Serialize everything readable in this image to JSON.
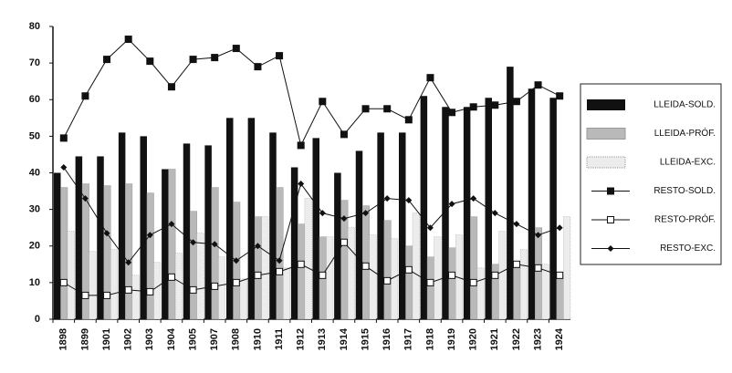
{
  "chart_data": {
    "type": "bar",
    "categories": [
      "1898",
      "1899",
      "1901",
      "1902",
      "1903",
      "1904",
      "1905",
      "1907",
      "1908",
      "1910",
      "1911",
      "1912",
      "1913",
      "1914",
      "1915",
      "1916",
      "1917",
      "1918",
      "1919",
      "1920",
      "1921",
      "1922",
      "1923",
      "1924"
    ],
    "ylim": [
      0,
      80
    ],
    "yticks": [
      0,
      10,
      20,
      30,
      40,
      50,
      60,
      70,
      80
    ],
    "series": [
      {
        "name": "LLEIDA-SOLD.",
        "kind": "bar",
        "color": "#111111",
        "values": [
          40,
          44.5,
          44.5,
          51,
          50,
          41,
          48,
          47.5,
          55,
          55,
          51,
          41.5,
          49.5,
          40,
          46,
          51,
          51,
          61,
          58,
          58,
          60.5,
          69,
          63,
          60.5
        ]
      },
      {
        "name": "LLEIDA-PRÓF.",
        "kind": "bar",
        "color": "#b9b9b9",
        "values": [
          36,
          37,
          36.5,
          37,
          34.5,
          41,
          29.5,
          36,
          32,
          28,
          36,
          26,
          22.5,
          32.5,
          31,
          27,
          20,
          17,
          19.5,
          28,
          15,
          14,
          25,
          12
        ]
      },
      {
        "name": "LLEIDA-EXC.",
        "kind": "bar",
        "color": "#ececec",
        "values": [
          24,
          18.5,
          19,
          12,
          15.5,
          18,
          23.5,
          17,
          11,
          28,
          14,
          33,
          22.5,
          25,
          23,
          22,
          29,
          22.5,
          23,
          14,
          24,
          19,
          15,
          28
        ]
      },
      {
        "name": "RESTO-SOLD.",
        "kind": "line",
        "marker": "square-filled",
        "color": "#111111",
        "values": [
          49.5,
          61,
          71,
          76.5,
          70.5,
          63.5,
          71,
          71.5,
          74,
          69,
          72,
          47.5,
          59.5,
          50.5,
          57.5,
          57.5,
          54.5,
          66,
          56.5,
          58,
          58.5,
          59.5,
          64,
          61
        ]
      },
      {
        "name": "RESTO-PRÓF.",
        "kind": "line",
        "marker": "square-open",
        "color": "#111111",
        "values": [
          10,
          6.5,
          6.5,
          8,
          7.5,
          11.5,
          8,
          9,
          10,
          12,
          13,
          15,
          12,
          21,
          14.5,
          10.5,
          13.5,
          10,
          12,
          10,
          12,
          15,
          14,
          12
        ]
      },
      {
        "name": "RESTO-EXC.",
        "kind": "line",
        "marker": "diamond",
        "color": "#111111",
        "values": [
          41.5,
          33,
          23.5,
          15.5,
          23,
          26,
          21,
          20.5,
          16,
          20,
          16,
          37,
          29,
          27.5,
          29,
          33,
          32.5,
          25,
          31.5,
          33,
          29,
          26,
          23,
          25
        ]
      }
    ]
  }
}
